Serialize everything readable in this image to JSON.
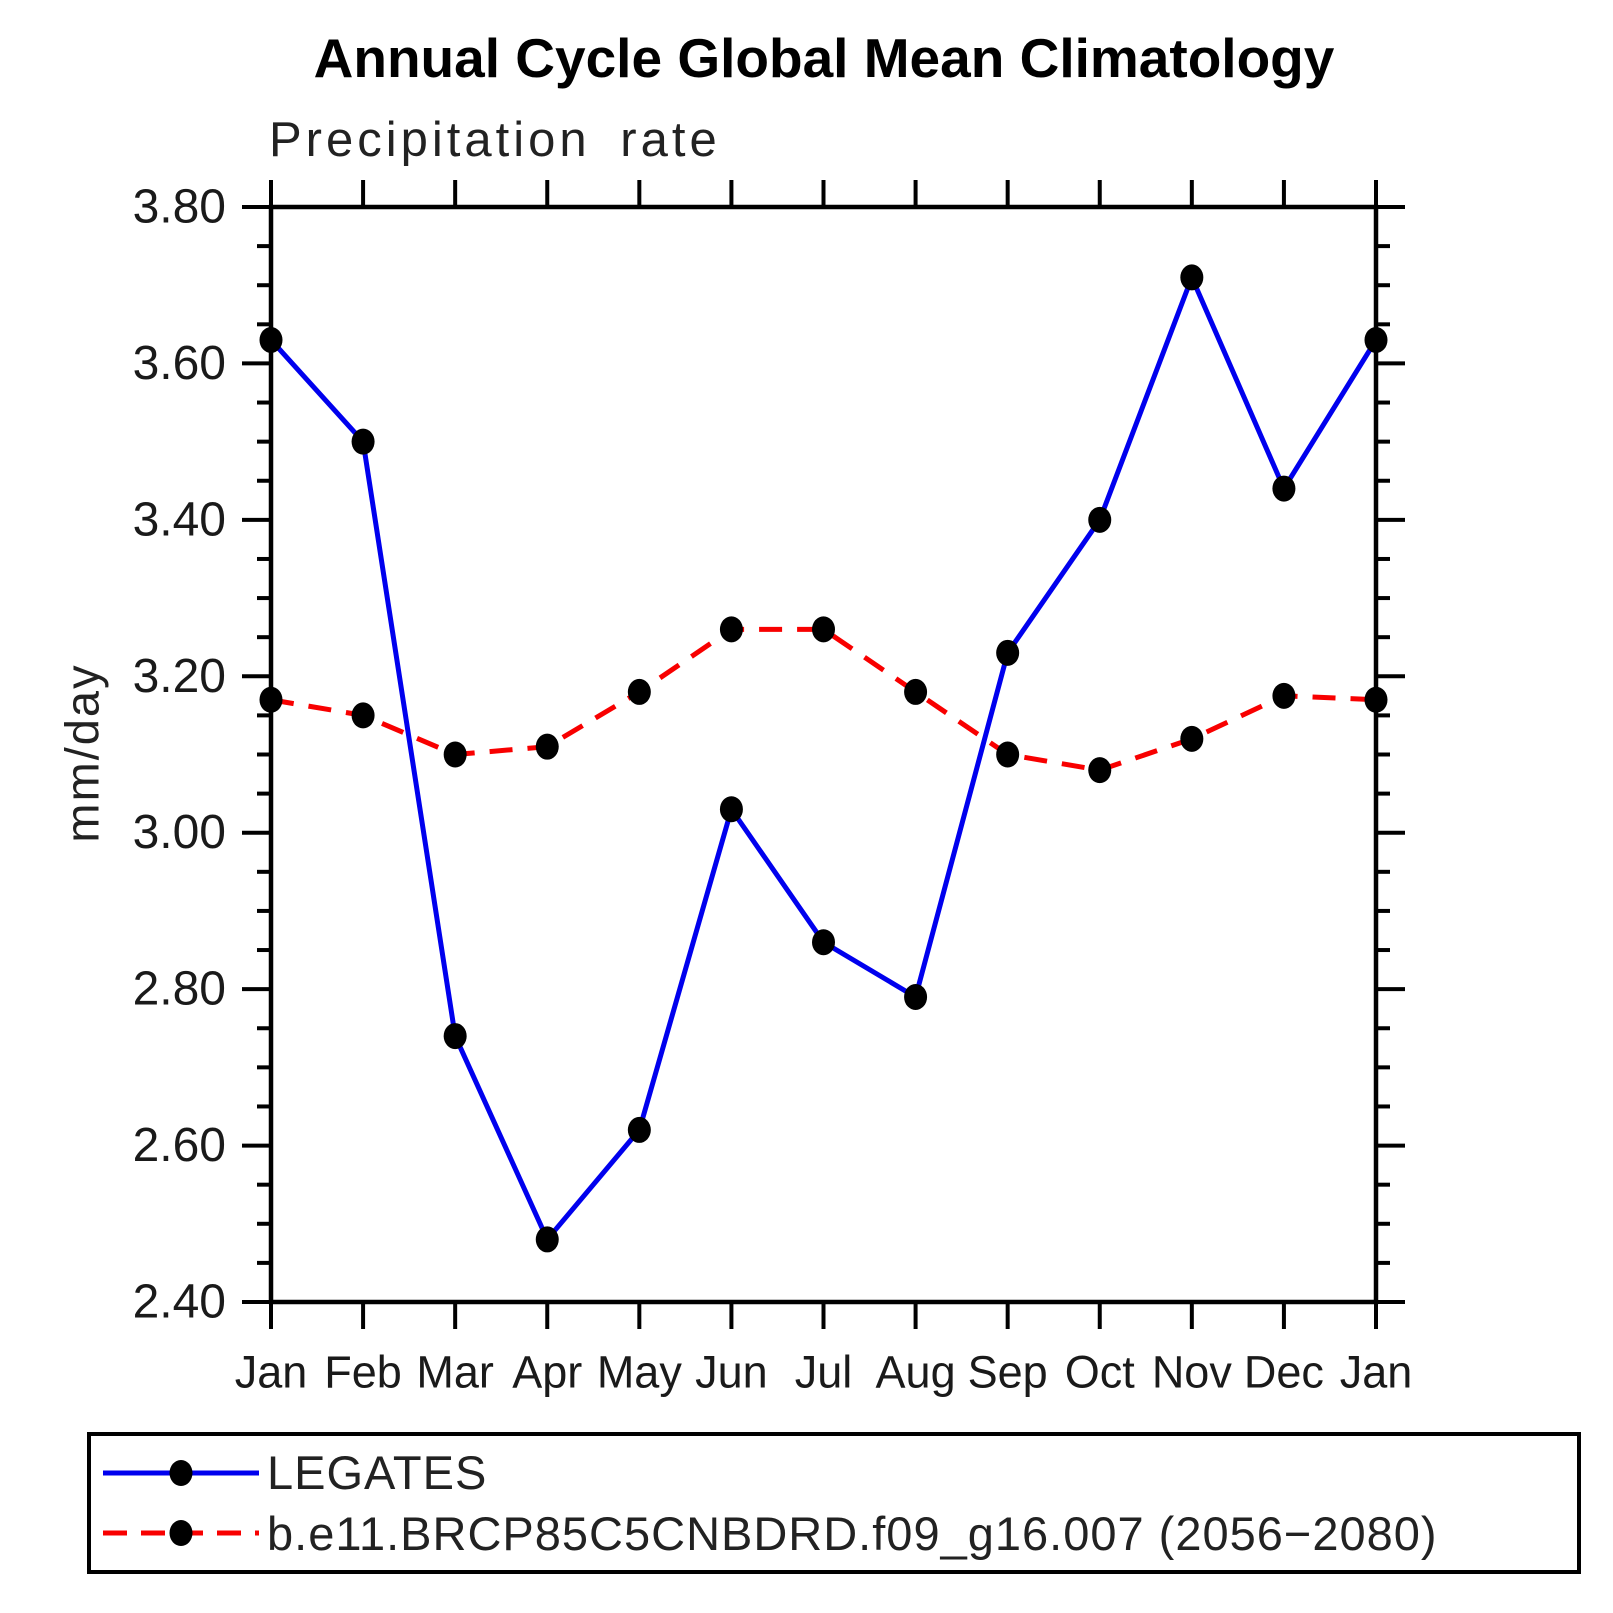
{
  "chart_data": {
    "type": "line",
    "title": "Annual Cycle Global Mean Climatology",
    "subtitle": "Precipitation rate",
    "ylabel": "mm/day",
    "xlabel": "",
    "categories": [
      "Jan",
      "Feb",
      "Mar",
      "Apr",
      "May",
      "Jun",
      "Jul",
      "Aug",
      "Sep",
      "Oct",
      "Nov",
      "Dec",
      "Jan"
    ],
    "ylim": [
      2.4,
      3.8
    ],
    "ytick_step": 0.2,
    "yminor_step": 0.05,
    "ytick_labels": [
      "2.40",
      "2.60",
      "2.80",
      "3.00",
      "3.20",
      "3.40",
      "3.60",
      "3.80"
    ],
    "grid": false,
    "frame": "box-with-outward-ticks",
    "legend_position": "bottom-left-box",
    "marker_color": "#000000",
    "series": [
      {
        "name": "LEGATES",
        "color": "#0000ee",
        "style": "solid",
        "marker": "circle",
        "values": [
          3.63,
          3.5,
          2.74,
          2.48,
          2.62,
          3.03,
          2.86,
          2.79,
          3.23,
          3.4,
          3.71,
          3.44,
          3.63
        ]
      },
      {
        "name": "b.e11.BRCP85C5CNBDRD.f09_g16.007 (2056−2080)",
        "color": "#f80000",
        "style": "dashed",
        "marker": "circle",
        "values": [
          3.17,
          3.15,
          3.1,
          3.11,
          3.18,
          3.26,
          3.26,
          3.18,
          3.1,
          3.08,
          3.12,
          3.175,
          3.17
        ]
      }
    ]
  }
}
